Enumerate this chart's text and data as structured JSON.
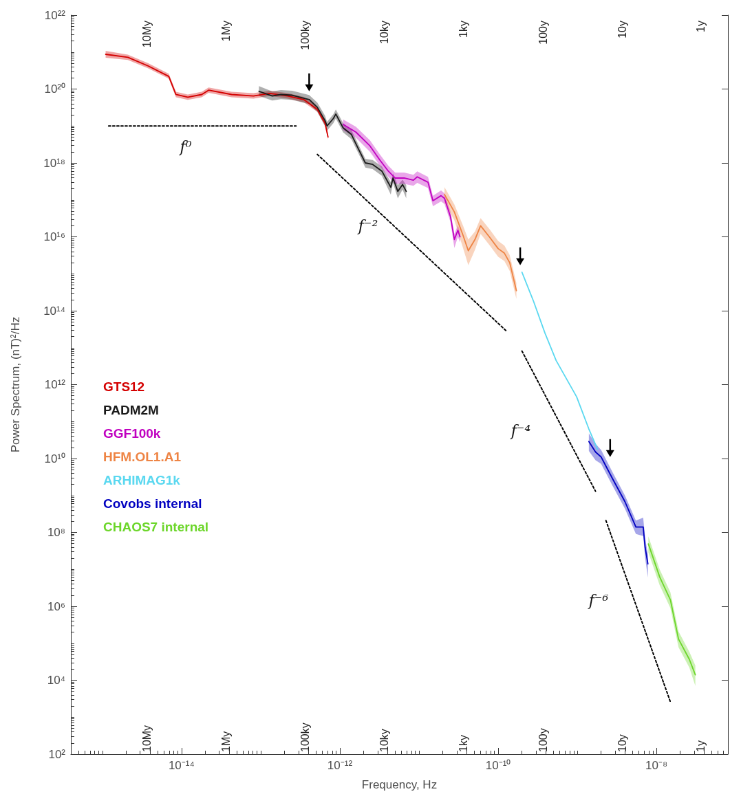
{
  "chart_data": {
    "type": "line",
    "xlabel": "Frequency, Hz",
    "ylabel": "Power Spectrum, (nT)²/Hz",
    "log": "xy",
    "grid": false,
    "legend": "left",
    "marker": "none",
    "line_style": "solid",
    "xlim": [
      4e-16,
      8e-08
    ],
    "ylim": [
      100.0,
      1e+22
    ],
    "xticks": [
      {
        "value": 1e-14,
        "label": "10⁻¹⁴"
      },
      {
        "value": 1e-12,
        "label": "10⁻¹²"
      },
      {
        "value": 1e-10,
        "label": "10⁻¹⁰"
      },
      {
        "value": 1e-08,
        "label": "10⁻⁸"
      }
    ],
    "yticks": [
      {
        "value": 100.0,
        "label": "10²"
      },
      {
        "value": 10000.0,
        "label": "10⁴"
      },
      {
        "value": 1000000.0,
        "label": "10⁶"
      },
      {
        "value": 100000000.0,
        "label": "10⁸"
      },
      {
        "value": 10000000000.0,
        "label": "10¹⁰"
      },
      {
        "value": 1000000000000.0,
        "label": "10¹²"
      },
      {
        "value": 100000000000000.0,
        "label": "10¹⁴"
      },
      {
        "value": 1e+16,
        "label": "10¹⁶"
      },
      {
        "value": 1e+18,
        "label": "10¹⁸"
      },
      {
        "value": 1e+20,
        "label": "10²⁰"
      },
      {
        "value": 1e+22,
        "label": "10²²"
      }
    ],
    "series": [
      {
        "name": "GTS12",
        "color": "#d40000",
        "x": [
          1.1e-15,
          2.1e-15,
          3.8e-15,
          6.9e-15,
          8.5e-15,
          1.2e-14,
          1.8e-14,
          2.2e-14,
          4.3e-14,
          8.1e-14,
          1.3e-13,
          2.2e-13,
          3.5e-13,
          5.2e-13,
          6.5e-13,
          7.1e-13
        ],
        "values": [
          8.7e+20,
          7.2e+20,
          4.2e+20,
          2.2e+20,
          7.1e+19,
          6e+19,
          7.1e+19,
          9.3e+19,
          7.1e+19,
          6.5e+19,
          7.6e+19,
          6.5e+19,
          5.2e+19,
          2.8e+19,
          1.2e+19,
          5e+18
        ],
        "lower": [
          7e+20,
          6.1e+20,
          3.6e+20,
          1.9e+20,
          6e+19,
          5.1e+19,
          6e+19,
          7.9e+19,
          6e+19,
          5.5e+19,
          6.5e+19,
          5.5e+19,
          4.4e+19,
          2.4e+19,
          1e+19,
          4.3e+18
        ],
        "upper": [
          1.08e+21,
          8.5e+20,
          5e+20,
          2.6e+20,
          8.4e+19,
          7.1e+19,
          8.4e+19,
          1.1e+20,
          8.4e+19,
          7.7e+19,
          9e+19,
          7.7e+19,
          6.1e+19,
          3.3e+19,
          1.4e+19,
          5.9e+18
        ]
      },
      {
        "name": "PADM2M",
        "color": "#1a1a1a",
        "x": [
          9.5e-14,
          1.4e-13,
          1.8e-13,
          2.5e-13,
          4.1e-13,
          5.2e-13,
          6.5e-13,
          6.9e-13,
          8.3e-13,
          8.9e-13,
          1.1e-12,
          1.4e-12,
          1.7e-12,
          2.1e-12,
          2.6e-12,
          3.4e-12,
          4.4e-12,
          4.7e-12,
          5.4e-12,
          6.2e-12,
          6.9e-12
        ],
        "values": [
          8.7e+19,
          6.5e+19,
          7.1e+19,
          6.8e+19,
          5.2e+19,
          3.2e+19,
          1.4e+19,
          1e+19,
          1.6e+19,
          2.1e+19,
          8.9e+18,
          5.9e+18,
          2.5e+18,
          1e+18,
          9.1e+17,
          6e+17,
          2.2e+17,
          3.9e+17,
          1.7e+17,
          2.6e+17,
          1.7e+17
        ],
        "lower": [
          6.5e+19,
          4.9e+19,
          5.3e+19,
          5.1e+19,
          3.9e+19,
          2.4e+19,
          1e+19,
          7.5e+18,
          1.2e+19,
          1.6e+19,
          6.7e+18,
          4.4e+18,
          1.9e+18,
          7.5e+17,
          6.8e+17,
          4.5e+17,
          1.4e+17,
          2.9e+17,
          1.1e+17,
          1.9e+17,
          1.1e+17
        ],
        "upper": [
          1.2e+20,
          8.6e+19,
          9.4e+19,
          9e+19,
          6.9e+19,
          4.3e+19,
          1.9e+19,
          1.3e+19,
          2.1e+19,
          2.8e+19,
          1.2e+19,
          7.8e+18,
          3.3e+18,
          1.3e+18,
          1.2e+18,
          8e+17,
          3e+17,
          5.2e+17,
          2.5e+17,
          3.5e+17,
          2.5e+17
        ]
      },
      {
        "name": "GGF100k",
        "color": "#c000c0",
        "x": [
          1.1e-12,
          1.6e-12,
          2.4e-12,
          3.2e-12,
          4.1e-12,
          5e-12,
          6.5e-12,
          8.5e-12,
          9.5e-12,
          1.3e-11,
          1.5e-11,
          1.9e-11,
          2.1e-11,
          2.5e-11,
          2.8e-11,
          3.1e-11,
          3.3e-11
        ],
        "values": [
          1.1e+19,
          6.8e+18,
          2.9e+18,
          1.2e+18,
          6e+17,
          3.9e+17,
          3.9e+17,
          3.4e+17,
          4.2e+17,
          3e+17,
          9.5e+16,
          1.3e+17,
          1.1e+17,
          3.5e+16,
          8500000000000000.0,
          1.5e+16,
          1e+16
        ],
        "lower": [
          7.7e+18,
          4.8e+18,
          2e+18,
          8.4e+17,
          4.2e+17,
          2.7e+17,
          2.7e+17,
          2.4e+17,
          2.9e+17,
          2.1e+17,
          6.7e+16,
          9.1e+16,
          7.7e+16,
          2.5e+16,
          5000000000000000.0,
          1e+16,
          7000000000000000.0
        ],
        "upper": [
          1.5e+19,
          9.5e+18,
          4.1e+18,
          1.7e+18,
          8.4e+17,
          5.5e+17,
          5.5e+17,
          4.8e+17,
          5.9e+17,
          4.2e+17,
          1.3e+17,
          1.8e+17,
          1.5e+17,
          4.9e+16,
          1.2e+16,
          2.1e+16,
          1.4e+16
        ]
      },
      {
        "name": "HFM.OL1.A1",
        "color": "#ee8444",
        "x": [
          2.1e-11,
          2.8e-11,
          3.6e-11,
          4.2e-11,
          5.1e-11,
          6e-11,
          7.8e-11,
          1e-10,
          1.2e-10,
          1.4e-10,
          1.7e-10
        ],
        "values": [
          1.4e+17,
          4.7e+16,
          1.1e+16,
          4200000000000000.0,
          8500000000000000.0,
          2e+16,
          9800000000000000.0,
          4800000000000000.0,
          3600000000000000.0,
          2000000000000000.0,
          350000000000000.0
        ],
        "lower": [
          8.4e+16,
          2.8e+16,
          5000000000000000.0,
          1700000000000000.0,
          4500000000000000.0,
          1.2e+16,
          5900000000000000.0,
          2900000000000000.0,
          2200000000000000.0,
          1200000000000000.0,
          210000000000000.0
        ],
        "upper": [
          2.2e+17,
          7.5e+16,
          2e+16,
          8400000000000000.0,
          1.4e+16,
          3.2e+16,
          1.6e+16,
          7700000000000000.0,
          5800000000000000.0,
          3200000000000000.0,
          560000000000000.0
        ]
      },
      {
        "name": "ARHIMAG1k",
        "color": "#5ad8f0",
        "x": [
          2e-10,
          2.8e-10,
          3.9e-10,
          5.4e-10,
          9.8e-10,
          1.4e-09,
          1.8e-09
        ],
        "values": [
          1100000000000000.0,
          180000000000000.0,
          25000000000000.0,
          4500000000000.0,
          470000000000.0,
          63000000000.0,
          18000000000.0
        ]
      },
      {
        "name": "Covobs internal",
        "color": "#0000c0",
        "x": [
          1.4e-09,
          1.7e-09,
          2e-09,
          2.8e-09,
          4e-09,
          5.5e-09,
          6.8e-09,
          7.2e-09,
          7.8e-09
        ],
        "values": [
          29000000000.0,
          15000000000.0,
          11000000000.0,
          2800000000.0,
          680000000.0,
          140000000.0,
          140000000.0,
          39000000.0,
          14000000.0
        ],
        "lower": [
          16000000000.0,
          9000000000.0,
          7200000000.0,
          1800000000.0,
          440000000.0,
          91000000.0,
          80000000.0,
          20000000.0,
          6000000.0
        ],
        "upper": [
          48000000000.0,
          25000000000.0,
          17000000000.0,
          4200000000.0,
          1000000000.0,
          210000000.0,
          250000000.0,
          70000000.0,
          25000000.0
        ]
      },
      {
        "name": "CHAOS7 internal",
        "color": "#6cd62a",
        "x": [
          7.9e-09,
          1.1e-08,
          1.5e-08,
          1.9e-08,
          2.6e-08,
          3.1e-08
        ],
        "values": [
          49000000.0,
          6200000.0,
          1500000.0,
          130000.0,
          37000.0,
          14000.0
        ],
        "lower": [
          29000000.0,
          3700000.0,
          900000.0,
          78000.0,
          22000.0,
          7000.0
        ],
        "upper": [
          78000000.0,
          9900000.0,
          2400000.0,
          210000.0,
          59000.0,
          25000.0
        ]
      },
      {
        "type": "line",
        "color": "#000000",
        "line_style": "dotted",
        "x": [
          1.2e-15,
          2.8e-13
        ],
        "values": [
          1e+19,
          1e+19
        ]
      },
      {
        "type": "line",
        "color": "#000000",
        "line_style": "dotted",
        "x": [
          5.2e-13,
          1.3e-10
        ],
        "values": [
          1.7e+18,
          27000000000000.0
        ]
      },
      {
        "type": "line",
        "color": "#000000",
        "line_style": "dotted",
        "x": [
          2e-10,
          1.7e-09
        ],
        "values": [
          8100000000000.0,
          1300000000.0
        ]
      },
      {
        "type": "line",
        "color": "#000000",
        "line_style": "dotted",
        "x": [
          2.3e-09,
          1.5e-08
        ],
        "values": [
          210000000.0,
          2600.0
        ]
      }
    ],
    "annotations": [
      "10My",
      "1My",
      "100ky",
      "10ky",
      "1ky",
      "100y",
      "10y",
      "1y",
      "f⁰",
      "f⁻²",
      "f⁻⁴",
      "f⁻⁶",
      "10My",
      "1My",
      "100ky",
      "10ky",
      "1ky",
      "100y",
      "10y",
      "1y"
    ]
  }
}
